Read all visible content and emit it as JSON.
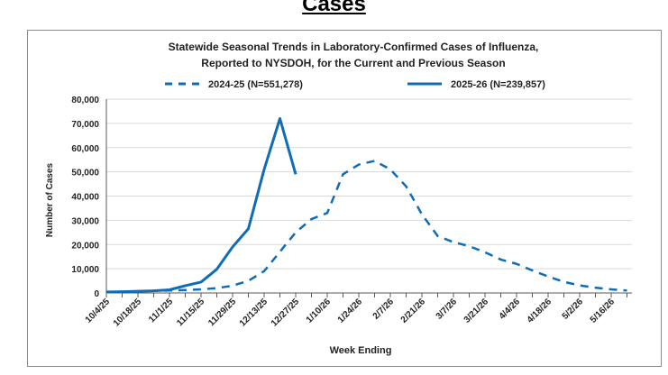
{
  "page": {
    "heading": "Cases"
  },
  "chart_data": {
    "type": "line",
    "title": [
      "Statewide Seasonal Trends in Laboratory-Confirmed  Cases of Influenza,",
      "Reported to NYSDOH, for the Current and Previous Season"
    ],
    "xlabel": "Week Ending",
    "ylabel": "Number of Cases",
    "ylim": [
      0,
      80000
    ],
    "yticks": [
      0,
      10000,
      20000,
      30000,
      40000,
      50000,
      60000,
      70000,
      80000
    ],
    "ytick_labels": [
      "0",
      "10,000",
      "20,000",
      "30,000",
      "40,000",
      "50,000",
      "60,000",
      "70,000",
      "80,000"
    ],
    "x_tick_labels": [
      "10/4/25",
      "10/18/25",
      "11/1/25",
      "11/15/25",
      "11/29/25",
      "12/13/25",
      "12/27/25",
      "1/10/26",
      "1/24/26",
      "2/7/26",
      "2/21/26",
      "3/7/26",
      "3/21/26",
      "4/4/26",
      "4/18/26",
      "5/2/26",
      "5/16/26"
    ],
    "x_weeks_total": 34,
    "grid": "horizontal",
    "legend_placement": "top",
    "series": [
      {
        "name": "2024-25 (N=551,278)",
        "style": "dashed",
        "color": "#0f6db8",
        "values": [
          400,
          500,
          700,
          900,
          1000,
          1200,
          1500,
          2000,
          3000,
          5000,
          9000,
          17000,
          25000,
          30500,
          33000,
          49000,
          53000,
          54500,
          51000,
          44000,
          32500,
          23500,
          21000,
          19300,
          16800,
          13800,
          12000,
          9300,
          6800,
          4600,
          3100,
          2200,
          1500,
          1000
        ]
      },
      {
        "name": "2025-26 (N=239,857)",
        "style": "solid",
        "color": "#0f6db8",
        "values": [
          400,
          500,
          700,
          900,
          1300,
          3000,
          4500,
          9800,
          19000,
          26500,
          51000,
          72000,
          49000
        ]
      }
    ]
  }
}
